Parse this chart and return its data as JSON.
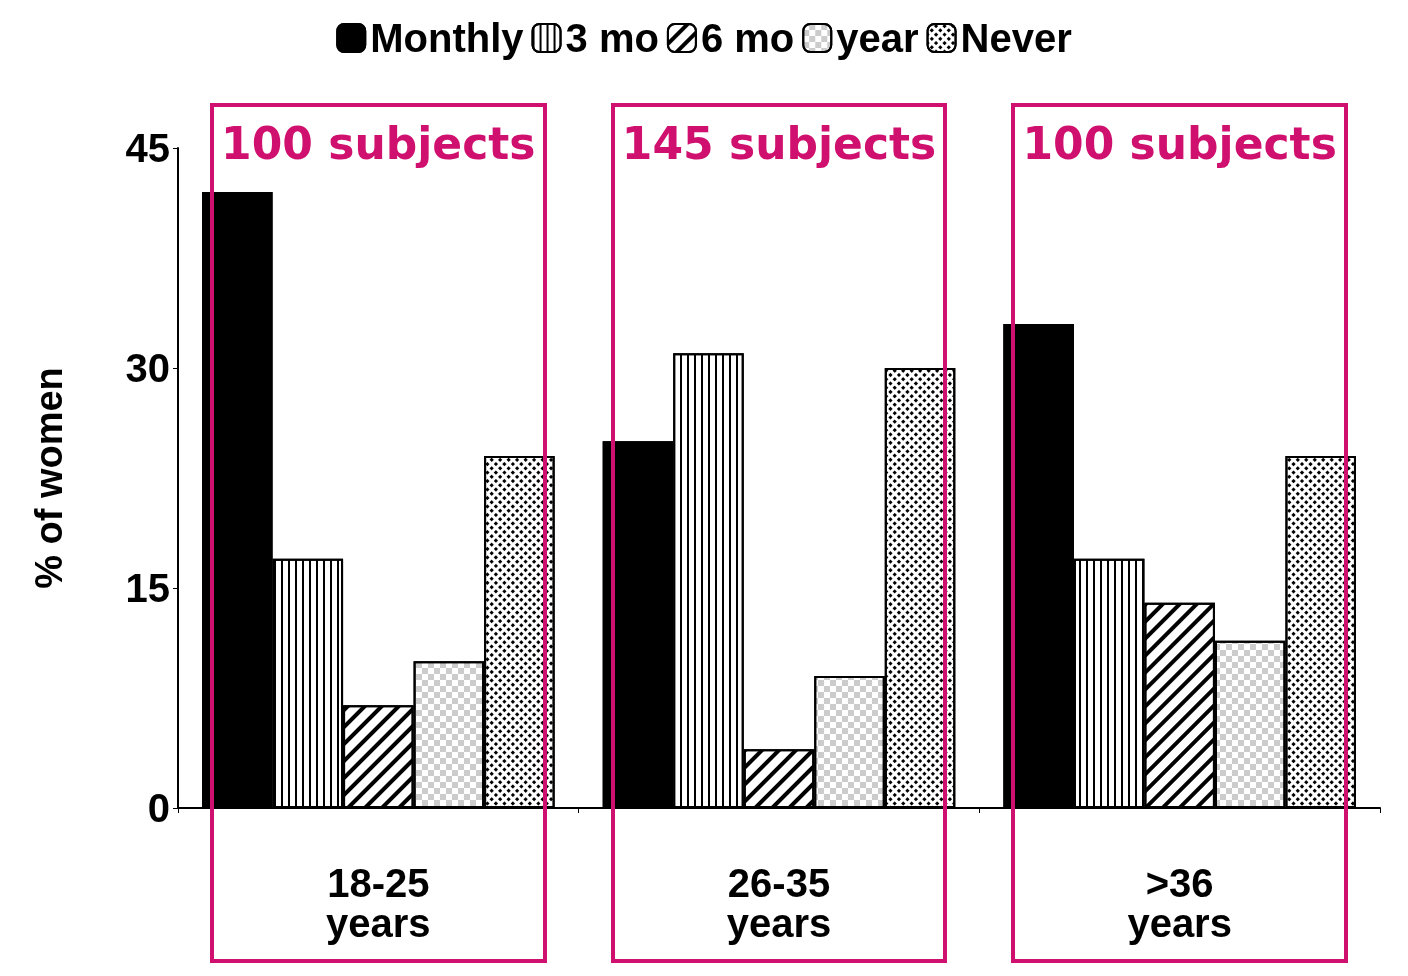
{
  "chart_data": {
    "type": "bar",
    "ylabel": "% of women",
    "categories": [
      "18-25 years",
      "26-35 years",
      ">36 years"
    ],
    "series": [
      {
        "name": "Monthly",
        "color": "#000000",
        "values": [
          42,
          25,
          33
        ]
      },
      {
        "name": "3 mo",
        "color": "#ffffff",
        "values": [
          17,
          31,
          17
        ]
      },
      {
        "name": "6 mo",
        "color": "#ffffff",
        "values": [
          7,
          4,
          14
        ]
      },
      {
        "name": "year",
        "color": "#ffffff",
        "values": [
          10,
          9,
          11.4
        ]
      },
      {
        "name": "Never",
        "color": "#ffffff",
        "values": [
          24,
          30,
          24
        ]
      }
    ],
    "ylim": [
      0,
      45
    ],
    "yticks": [
      0,
      15,
      30,
      45
    ],
    "grid": false,
    "legend": "top",
    "annotations": [
      "100 subjects",
      "145 subjects",
      "100 subjects"
    ]
  }
}
